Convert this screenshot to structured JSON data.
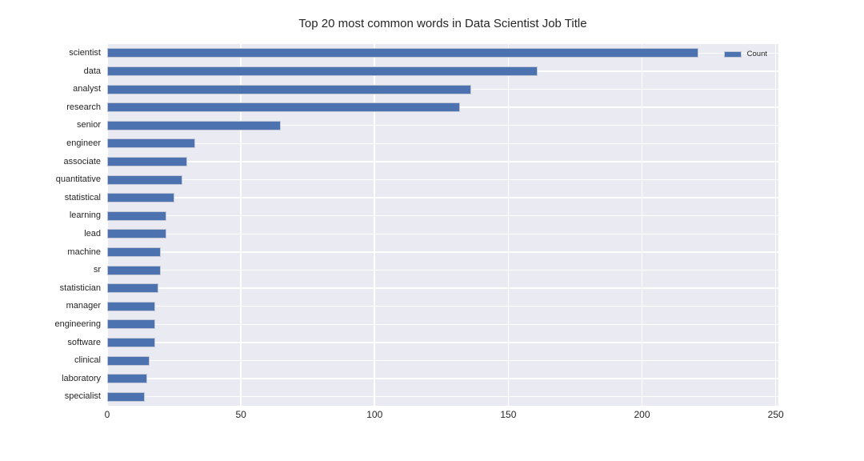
{
  "title": "Top 20 most common words in Data Scientist Job Title",
  "legend": {
    "label": "Count"
  },
  "colors": {
    "bar": "#4c72b0",
    "bar_edge": "#c3c8d6",
    "plot_background": "#eaeaf2",
    "gridline": "#ffffff",
    "text": "#262626",
    "figure_background": "#ffffff"
  },
  "chart_data": {
    "type": "bar",
    "orientation": "horizontal",
    "title": "Top 20 most common words in Data Scientist Job Title",
    "series_name": "Count",
    "categories": [
      "scientist",
      "data",
      "analyst",
      "research",
      "senior",
      "engineer",
      "associate",
      "quantitative",
      "statistical",
      "learning",
      "lead",
      "machine",
      "sr",
      "statistician",
      "manager",
      "engineering",
      "software",
      "clinical",
      "laboratory",
      "specialist"
    ],
    "values": [
      221,
      161,
      136,
      132,
      65,
      33,
      30,
      28,
      25,
      22,
      22,
      20,
      20,
      19,
      18,
      18,
      18,
      16,
      15,
      14
    ],
    "xlabel": "",
    "ylabel": "",
    "xlim": [
      0,
      251
    ],
    "xticks": [
      0,
      50,
      100,
      150,
      200,
      250
    ],
    "grid": true,
    "legend_position": "upper right"
  }
}
